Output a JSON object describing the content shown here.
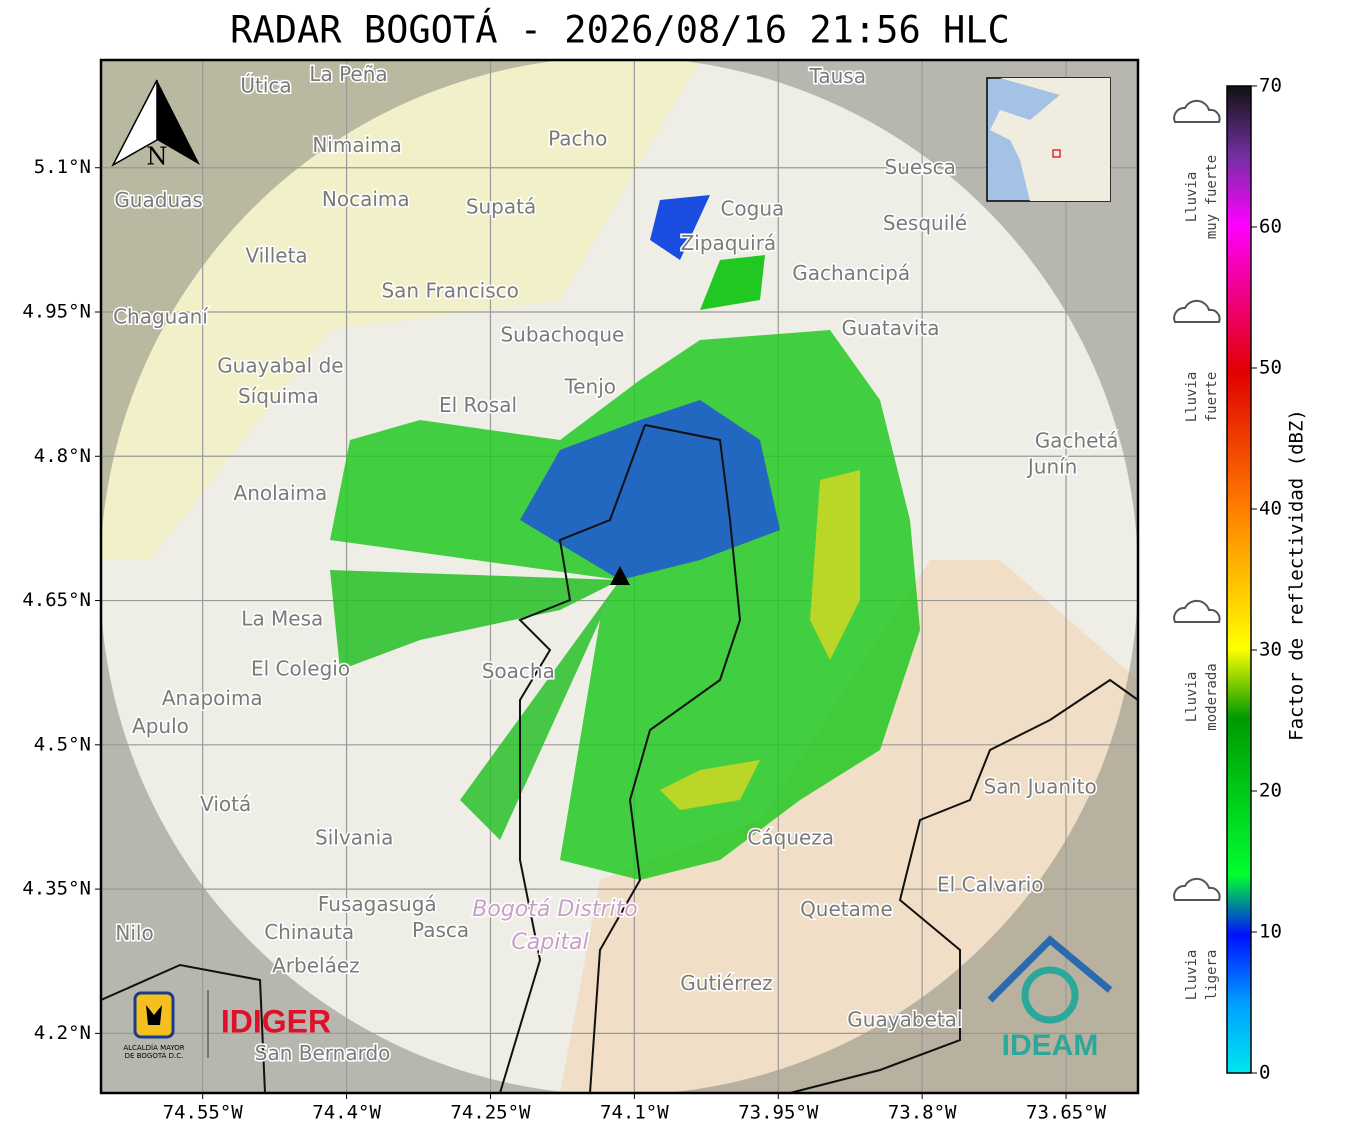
{
  "title": "RADAR BOGOTÁ - 2026/08/16 21:56 HLC",
  "map": {
    "xlim": [
      -74.656,
      -73.575
    ],
    "ylim": [
      4.138,
      5.212
    ],
    "xticks": [
      {
        "value": -74.55,
        "label": "74.55°W"
      },
      {
        "value": -74.4,
        "label": "74.4°W"
      },
      {
        "value": -74.25,
        "label": "74.25°W"
      },
      {
        "value": -74.1,
        "label": "74.1°W"
      },
      {
        "value": -73.95,
        "label": "73.95°W"
      },
      {
        "value": -73.8,
        "label": "73.8°W"
      },
      {
        "value": -73.65,
        "label": "73.65°W"
      }
    ],
    "yticks": [
      {
        "value": 4.2,
        "label": "4.2°N"
      },
      {
        "value": 4.35,
        "label": "4.35°N"
      },
      {
        "value": 4.5,
        "label": "4.5°N"
      },
      {
        "value": 4.65,
        "label": "4.65°N"
      },
      {
        "value": 4.8,
        "label": "4.8°N"
      },
      {
        "value": 4.95,
        "label": "4.95°N"
      },
      {
        "value": 5.1,
        "label": "5.1°N"
      }
    ],
    "north": "N",
    "places": [
      {
        "name": "Útica",
        "lon": -74.484,
        "lat": 5.184
      },
      {
        "name": "La Peña",
        "lon": -74.398,
        "lat": 5.196
      },
      {
        "name": "Tausa",
        "lon": -73.888,
        "lat": 5.194
      },
      {
        "name": "Pacho",
        "lon": -74.159,
        "lat": 5.129
      },
      {
        "name": "Nimaima",
        "lon": -74.389,
        "lat": 5.122
      },
      {
        "name": "Guaduas",
        "lon": -74.596,
        "lat": 5.065
      },
      {
        "name": "Nocaima",
        "lon": -74.38,
        "lat": 5.066
      },
      {
        "name": "Supatá",
        "lon": -74.239,
        "lat": 5.058
      },
      {
        "name": "Cogua",
        "lon": -73.977,
        "lat": 5.056
      },
      {
        "name": "Suesca",
        "lon": -73.802,
        "lat": 5.099
      },
      {
        "name": "Sesquilé",
        "lon": -73.797,
        "lat": 5.041
      },
      {
        "name": "Zipaquirá",
        "lon": -74.002,
        "lat": 5.02
      },
      {
        "name": "Villeta",
        "lon": -74.473,
        "lat": 5.007
      },
      {
        "name": "Gachancipá",
        "lon": -73.874,
        "lat": 4.989
      },
      {
        "name": "San Francisco",
        "lon": -74.292,
        "lat": 4.971
      },
      {
        "name": "Chaguaní",
        "lon": -74.594,
        "lat": 4.944
      },
      {
        "name": "Subachoque",
        "lon": -74.175,
        "lat": 4.925
      },
      {
        "name": "Guatavita",
        "lon": -73.833,
        "lat": 4.932
      },
      {
        "name": "Guayabal de",
        "lon": -74.469,
        "lat": 4.893
      },
      {
        "name": "Síquima",
        "lon": -74.471,
        "lat": 4.861
      },
      {
        "name": "Tenjo",
        "lon": -74.146,
        "lat": 4.871
      },
      {
        "name": "El Rosal",
        "lon": -74.263,
        "lat": 4.852
      },
      {
        "name": "Gachetá",
        "lon": -73.639,
        "lat": 4.815
      },
      {
        "name": "Junín",
        "lon": -73.664,
        "lat": 4.788
      },
      {
        "name": "Anolaima",
        "lon": -74.469,
        "lat": 4.76
      },
      {
        "name": "La Mesa",
        "lon": -74.467,
        "lat": 4.63
      },
      {
        "name": "El Colegio",
        "lon": -74.448,
        "lat": 4.578
      },
      {
        "name": "Anapoima",
        "lon": -74.54,
        "lat": 4.547
      },
      {
        "name": "Apulo",
        "lon": -74.594,
        "lat": 4.518
      },
      {
        "name": "Soacha",
        "lon": -74.221,
        "lat": 4.575
      },
      {
        "name": "San Juanito",
        "lon": -73.677,
        "lat": 4.455
      },
      {
        "name": "Viotá",
        "lon": -74.526,
        "lat": 4.437
      },
      {
        "name": "Silvania",
        "lon": -74.392,
        "lat": 4.402
      },
      {
        "name": "Cáqueza",
        "lon": -73.937,
        "lat": 4.402
      },
      {
        "name": "El Calvario",
        "lon": -73.729,
        "lat": 4.353
      },
      {
        "name": "Fusagasugá",
        "lon": -74.368,
        "lat": 4.333
      },
      {
        "name": "Quetame",
        "lon": -73.879,
        "lat": 4.328
      },
      {
        "name": "Chinauta",
        "lon": -74.439,
        "lat": 4.304
      },
      {
        "name": "Pasca",
        "lon": -74.302,
        "lat": 4.306
      },
      {
        "name": "Nilo",
        "lon": -74.621,
        "lat": 4.303
      },
      {
        "name": "Arbeláez",
        "lon": -74.432,
        "lat": 4.269
      },
      {
        "name": "Gutiérrez",
        "lon": -74.004,
        "lat": 4.251
      },
      {
        "name": "Guayabetal",
        "lon": -73.818,
        "lat": 4.213
      },
      {
        "name": "San Bernardo",
        "lon": -74.425,
        "lat": 4.178
      }
    ],
    "district": [
      "Bogotá Distrito",
      "Capital"
    ]
  },
  "colorbar": {
    "label": "Factor de reflectividad (dBZ)",
    "lim": [
      0,
      70
    ],
    "ticks": [
      0,
      10,
      20,
      30,
      40,
      50,
      60,
      70
    ],
    "classes": [
      [
        "Lluvia",
        "ligera"
      ],
      [
        "Lluvia",
        "moderada"
      ],
      [
        "Lluvia",
        "fuerte"
      ],
      [
        "Lluvia",
        "muy fuerte"
      ]
    ]
  },
  "logos": {
    "alcaldia": [
      "ALCALDÍA MAYOR",
      "DE BOGOTÁ D.C."
    ],
    "idiger": "IDIGER",
    "ideam": "IDEAM"
  }
}
